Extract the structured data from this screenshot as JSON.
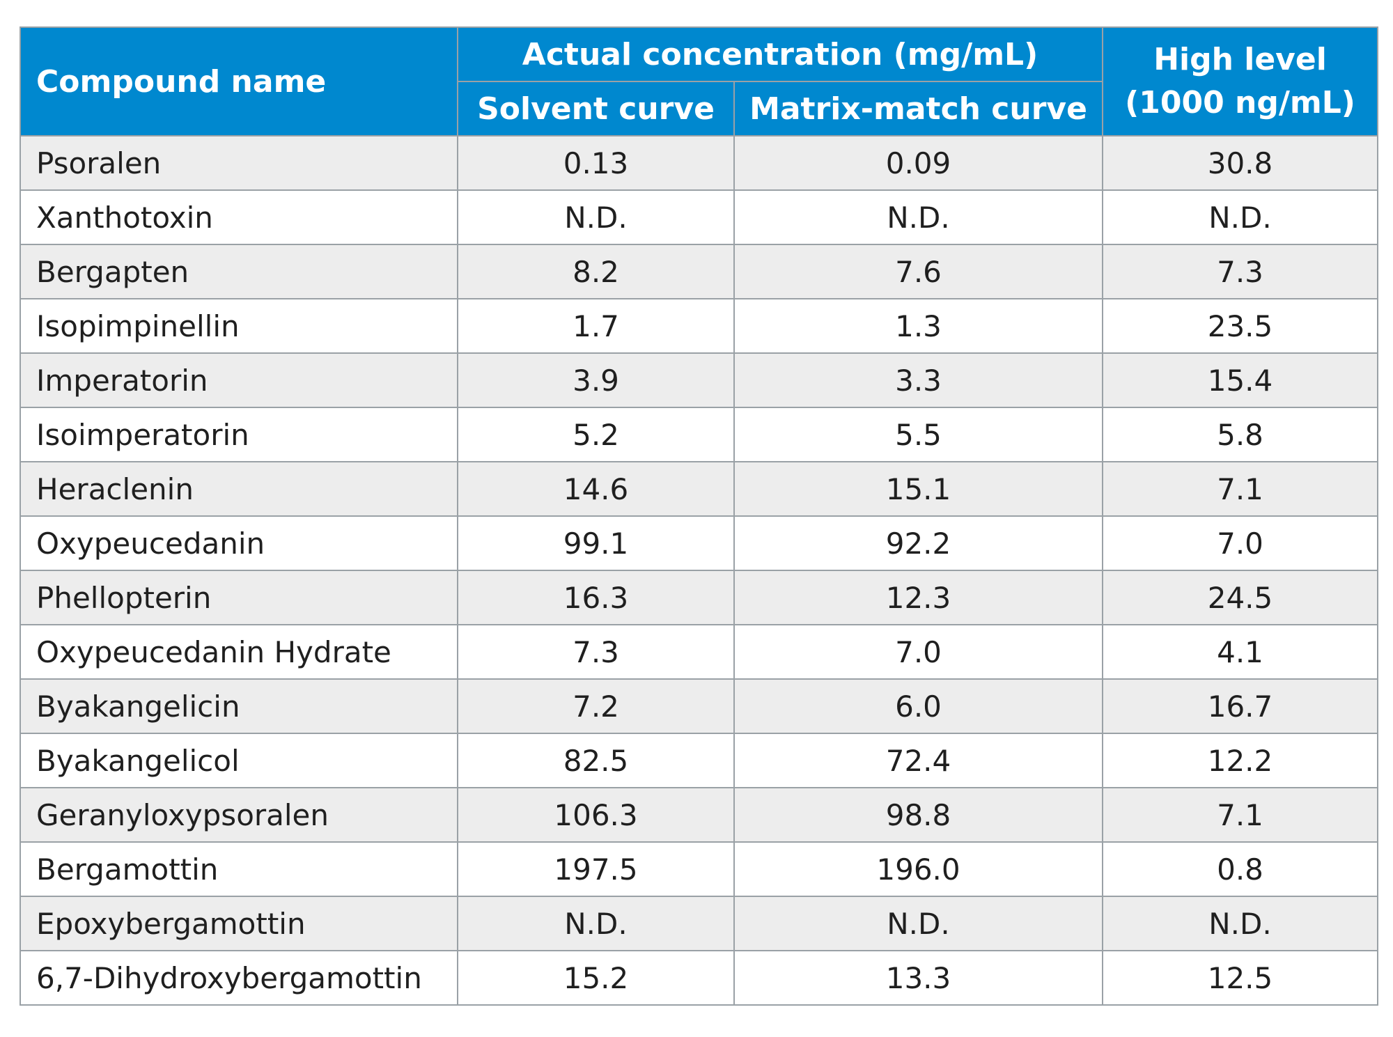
{
  "table": {
    "header": {
      "compound": "Compound name",
      "group": "Actual concentration (mg/mL)",
      "solvent": "Solvent curve",
      "matrix": "Matrix-match curve",
      "high_line1": "High level",
      "high_line2": "(1000 ng/mL)"
    },
    "rows": [
      {
        "name": "Psoralen",
        "solvent": "0.13",
        "matrix": "0.09",
        "high": "30.8"
      },
      {
        "name": "Xanthotoxin",
        "solvent": "N.D.",
        "matrix": "N.D.",
        "high": "N.D."
      },
      {
        "name": "Bergapten",
        "solvent": "8.2",
        "matrix": "7.6",
        "high": "7.3"
      },
      {
        "name": "Isopimpinellin",
        "solvent": "1.7",
        "matrix": "1.3",
        "high": "23.5"
      },
      {
        "name": "Imperatorin",
        "solvent": "3.9",
        "matrix": "3.3",
        "high": "15.4"
      },
      {
        "name": "Isoimperatorin",
        "solvent": "5.2",
        "matrix": "5.5",
        "high": "5.8"
      },
      {
        "name": "Heraclenin",
        "solvent": "14.6",
        "matrix": "15.1",
        "high": "7.1"
      },
      {
        "name": "Oxypeucedanin",
        "solvent": "99.1",
        "matrix": "92.2",
        "high": "7.0"
      },
      {
        "name": "Phellopterin",
        "solvent": "16.3",
        "matrix": "12.3",
        "high": "24.5"
      },
      {
        "name": "Oxypeucedanin Hydrate",
        "solvent": "7.3",
        "matrix": "7.0",
        "high": "4.1"
      },
      {
        "name": "Byakangelicin",
        "solvent": "7.2",
        "matrix": "6.0",
        "high": "16.7"
      },
      {
        "name": "Byakangelicol",
        "solvent": "82.5",
        "matrix": "72.4",
        "high": "12.2"
      },
      {
        "name": "Geranyloxypsoralen",
        "solvent": "106.3",
        "matrix": "98.8",
        "high": "7.1"
      },
      {
        "name": "Bergamottin",
        "solvent": "197.5",
        "matrix": "196.0",
        "high": "0.8"
      },
      {
        "name": "Epoxybergamottin",
        "solvent": "N.D.",
        "matrix": "N.D.",
        "high": "N.D."
      },
      {
        "name": "6,7-Dihydroxybergamottin",
        "solvent": "15.2",
        "matrix": "13.3",
        "high": "12.5"
      }
    ]
  },
  "colors": {
    "header_bg": "#0088cf",
    "header_text": "#ffffff",
    "row_shaded": "#ededed",
    "row_plain": "#ffffff",
    "grid": "#9aa1a6"
  }
}
